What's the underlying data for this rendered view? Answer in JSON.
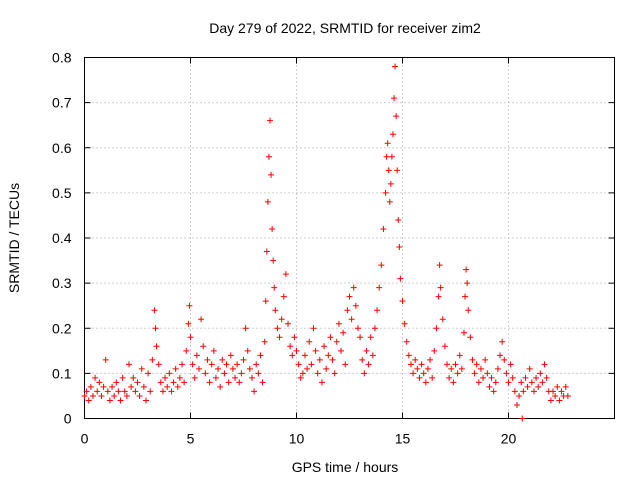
{
  "chart_data": {
    "type": "scatter",
    "title": "Day 279 of 2022, SRMTID for receiver zim2",
    "xlabel": "GPS time / hours",
    "ylabel": "SRMTID / TECUs",
    "xlim": [
      0,
      25
    ],
    "ylim": [
      0,
      0.8
    ],
    "xticks": [
      0,
      5,
      10,
      15,
      20
    ],
    "yticks": [
      0,
      0.1,
      0.2,
      0.3,
      0.4,
      0.5,
      0.6,
      0.7,
      0.8
    ],
    "xtick_labels": [
      "0",
      "5",
      "10",
      "15",
      "20"
    ],
    "ytick_labels": [
      "0",
      "0.1",
      "0.2",
      "0.3",
      "0.4",
      "0.5",
      "0.6",
      "0.7",
      "0.8"
    ],
    "grid": true,
    "marker": "+",
    "color": "#ff0000",
    "series": [
      {
        "name": "SRMTID",
        "points": [
          [
            0.0,
            0.05
          ],
          [
            0.1,
            0.06
          ],
          [
            0.2,
            0.04
          ],
          [
            0.3,
            0.07
          ],
          [
            0.4,
            0.05
          ],
          [
            0.5,
            0.09
          ],
          [
            0.6,
            0.06
          ],
          [
            0.7,
            0.08
          ],
          [
            0.8,
            0.05
          ],
          [
            0.9,
            0.07
          ],
          [
            1.0,
            0.13
          ],
          [
            1.1,
            0.06
          ],
          [
            1.2,
            0.04
          ],
          [
            1.3,
            0.07
          ],
          [
            1.4,
            0.05
          ],
          [
            1.5,
            0.08
          ],
          [
            1.6,
            0.06
          ],
          [
            1.7,
            0.04
          ],
          [
            1.8,
            0.09
          ],
          [
            1.9,
            0.06
          ],
          [
            2.0,
            0.05
          ],
          [
            2.1,
            0.12
          ],
          [
            2.2,
            0.07
          ],
          [
            2.3,
            0.09
          ],
          [
            2.4,
            0.06
          ],
          [
            2.5,
            0.08
          ],
          [
            2.6,
            0.05
          ],
          [
            2.7,
            0.11
          ],
          [
            2.8,
            0.07
          ],
          [
            2.9,
            0.04
          ],
          [
            3.0,
            0.1
          ],
          [
            3.1,
            0.06
          ],
          [
            3.2,
            0.13
          ],
          [
            3.3,
            0.24
          ],
          [
            3.35,
            0.2
          ],
          [
            3.4,
            0.16
          ],
          [
            3.5,
            0.12
          ],
          [
            3.6,
            0.08
          ],
          [
            3.7,
            0.06
          ],
          [
            3.8,
            0.09
          ],
          [
            3.9,
            0.07
          ],
          [
            4.0,
            0.1
          ],
          [
            4.1,
            0.06
          ],
          [
            4.2,
            0.08
          ],
          [
            4.3,
            0.11
          ],
          [
            4.4,
            0.07
          ],
          [
            4.5,
            0.09
          ],
          [
            4.6,
            0.12
          ],
          [
            4.7,
            0.08
          ],
          [
            4.8,
            0.15
          ],
          [
            4.9,
            0.21
          ],
          [
            4.95,
            0.25
          ],
          [
            5.0,
            0.18
          ],
          [
            5.1,
            0.12
          ],
          [
            5.2,
            0.09
          ],
          [
            5.3,
            0.14
          ],
          [
            5.4,
            0.11
          ],
          [
            5.5,
            0.22
          ],
          [
            5.6,
            0.16
          ],
          [
            5.7,
            0.1
          ],
          [
            5.8,
            0.13
          ],
          [
            5.9,
            0.08
          ],
          [
            6.0,
            0.12
          ],
          [
            6.1,
            0.15
          ],
          [
            6.2,
            0.09
          ],
          [
            6.3,
            0.11
          ],
          [
            6.4,
            0.07
          ],
          [
            6.5,
            0.13
          ],
          [
            6.6,
            0.1
          ],
          [
            6.7,
            0.12
          ],
          [
            6.8,
            0.08
          ],
          [
            6.9,
            0.14
          ],
          [
            7.0,
            0.11
          ],
          [
            7.1,
            0.09
          ],
          [
            7.2,
            0.12
          ],
          [
            7.3,
            0.08
          ],
          [
            7.4,
            0.1
          ],
          [
            7.5,
            0.13
          ],
          [
            7.6,
            0.2
          ],
          [
            7.7,
            0.15
          ],
          [
            7.8,
            0.11
          ],
          [
            7.9,
            0.09
          ],
          [
            8.0,
            0.06
          ],
          [
            8.1,
            0.12
          ],
          [
            8.2,
            0.1
          ],
          [
            8.3,
            0.14
          ],
          [
            8.4,
            0.08
          ],
          [
            8.5,
            0.17
          ],
          [
            8.55,
            0.26
          ],
          [
            8.6,
            0.37
          ],
          [
            8.65,
            0.48
          ],
          [
            8.7,
            0.58
          ],
          [
            8.75,
            0.66
          ],
          [
            8.8,
            0.54
          ],
          [
            8.85,
            0.42
          ],
          [
            8.9,
            0.35
          ],
          [
            8.95,
            0.29
          ],
          [
            9.0,
            0.24
          ],
          [
            9.1,
            0.2
          ],
          [
            9.2,
            0.18
          ],
          [
            9.3,
            0.22
          ],
          [
            9.4,
            0.27
          ],
          [
            9.5,
            0.32
          ],
          [
            9.6,
            0.21
          ],
          [
            9.7,
            0.16
          ],
          [
            9.8,
            0.14
          ],
          [
            9.9,
            0.18
          ],
          [
            10.0,
            0.15
          ],
          [
            10.1,
            0.12
          ],
          [
            10.2,
            0.09
          ],
          [
            10.3,
            0.1
          ],
          [
            10.4,
            0.14
          ],
          [
            10.5,
            0.11
          ],
          [
            10.6,
            0.17
          ],
          [
            10.7,
            0.12
          ],
          [
            10.8,
            0.2
          ],
          [
            10.9,
            0.15
          ],
          [
            11.0,
            0.1
          ],
          [
            11.1,
            0.13
          ],
          [
            11.2,
            0.08
          ],
          [
            11.3,
            0.16
          ],
          [
            11.4,
            0.11
          ],
          [
            11.5,
            0.14
          ],
          [
            11.6,
            0.18
          ],
          [
            11.7,
            0.13
          ],
          [
            11.8,
            0.1
          ],
          [
            11.9,
            0.17
          ],
          [
            12.0,
            0.21
          ],
          [
            12.1,
            0.15
          ],
          [
            12.2,
            0.19
          ],
          [
            12.3,
            0.12
          ],
          [
            12.4,
            0.24
          ],
          [
            12.5,
            0.27
          ],
          [
            12.6,
            0.22
          ],
          [
            12.7,
            0.29
          ],
          [
            12.8,
            0.25
          ],
          [
            12.9,
            0.2
          ],
          [
            13.0,
            0.18
          ],
          [
            13.1,
            0.13
          ],
          [
            13.2,
            0.1
          ],
          [
            13.3,
            0.15
          ],
          [
            13.4,
            0.12
          ],
          [
            13.5,
            0.18
          ],
          [
            13.6,
            0.14
          ],
          [
            13.7,
            0.2
          ],
          [
            13.8,
            0.24
          ],
          [
            13.9,
            0.29
          ],
          [
            14.0,
            0.34
          ],
          [
            14.1,
            0.42
          ],
          [
            14.2,
            0.5
          ],
          [
            14.25,
            0.58
          ],
          [
            14.3,
            0.61
          ],
          [
            14.35,
            0.55
          ],
          [
            14.4,
            0.48
          ],
          [
            14.45,
            0.52
          ],
          [
            14.5,
            0.58
          ],
          [
            14.55,
            0.63
          ],
          [
            14.6,
            0.71
          ],
          [
            14.65,
            0.78
          ],
          [
            14.7,
            0.67
          ],
          [
            14.75,
            0.55
          ],
          [
            14.8,
            0.44
          ],
          [
            14.85,
            0.38
          ],
          [
            14.9,
            0.31
          ],
          [
            15.0,
            0.26
          ],
          [
            15.1,
            0.21
          ],
          [
            15.2,
            0.17
          ],
          [
            15.3,
            0.14
          ],
          [
            15.4,
            0.12
          ],
          [
            15.5,
            0.1
          ],
          [
            15.6,
            0.13
          ],
          [
            15.7,
            0.11
          ],
          [
            15.8,
            0.09
          ],
          [
            15.9,
            0.12
          ],
          [
            16.0,
            0.1
          ],
          [
            16.1,
            0.08
          ],
          [
            16.2,
            0.11
          ],
          [
            16.3,
            0.13
          ],
          [
            16.4,
            0.09
          ],
          [
            16.5,
            0.15
          ],
          [
            16.6,
            0.2
          ],
          [
            16.7,
            0.27
          ],
          [
            16.75,
            0.34
          ],
          [
            16.8,
            0.29
          ],
          [
            16.9,
            0.22
          ],
          [
            17.0,
            0.16
          ],
          [
            17.1,
            0.12
          ],
          [
            17.2,
            0.09
          ],
          [
            17.3,
            0.11
          ],
          [
            17.4,
            0.08
          ],
          [
            17.5,
            0.12
          ],
          [
            17.6,
            0.1
          ],
          [
            17.7,
            0.14
          ],
          [
            17.8,
            0.11
          ],
          [
            17.9,
            0.19
          ],
          [
            17.95,
            0.27
          ],
          [
            18.0,
            0.33
          ],
          [
            18.05,
            0.3
          ],
          [
            18.1,
            0.24
          ],
          [
            18.2,
            0.18
          ],
          [
            18.3,
            0.13
          ],
          [
            18.4,
            0.1
          ],
          [
            18.5,
            0.12
          ],
          [
            18.6,
            0.08
          ],
          [
            18.7,
            0.11
          ],
          [
            18.8,
            0.09
          ],
          [
            18.9,
            0.13
          ],
          [
            19.0,
            0.1
          ],
          [
            19.1,
            0.07
          ],
          [
            19.2,
            0.09
          ],
          [
            19.3,
            0.06
          ],
          [
            19.4,
            0.08
          ],
          [
            19.5,
            0.11
          ],
          [
            19.6,
            0.14
          ],
          [
            19.7,
            0.17
          ],
          [
            19.8,
            0.13
          ],
          [
            19.9,
            0.1
          ],
          [
            20.0,
            0.08
          ],
          [
            20.1,
            0.12
          ],
          [
            20.2,
            0.09
          ],
          [
            20.3,
            0.06
          ],
          [
            20.4,
            0.03
          ],
          [
            20.5,
            0.05
          ],
          [
            20.6,
            0.08
          ],
          [
            20.65,
            0.0
          ],
          [
            20.7,
            0.06
          ],
          [
            20.8,
            0.09
          ],
          [
            20.9,
            0.07
          ],
          [
            21.0,
            0.11
          ],
          [
            21.1,
            0.08
          ],
          [
            21.2,
            0.06
          ],
          [
            21.3,
            0.09
          ],
          [
            21.4,
            0.07
          ],
          [
            21.5,
            0.1
          ],
          [
            21.6,
            0.08
          ],
          [
            21.7,
            0.12
          ],
          [
            21.8,
            0.09
          ],
          [
            21.9,
            0.06
          ],
          [
            22.0,
            0.04
          ],
          [
            22.1,
            0.06
          ],
          [
            22.2,
            0.05
          ],
          [
            22.3,
            0.07
          ],
          [
            22.4,
            0.04
          ],
          [
            22.5,
            0.06
          ],
          [
            22.6,
            0.05
          ],
          [
            22.7,
            0.07
          ],
          [
            22.8,
            0.05
          ]
        ]
      }
    ]
  }
}
